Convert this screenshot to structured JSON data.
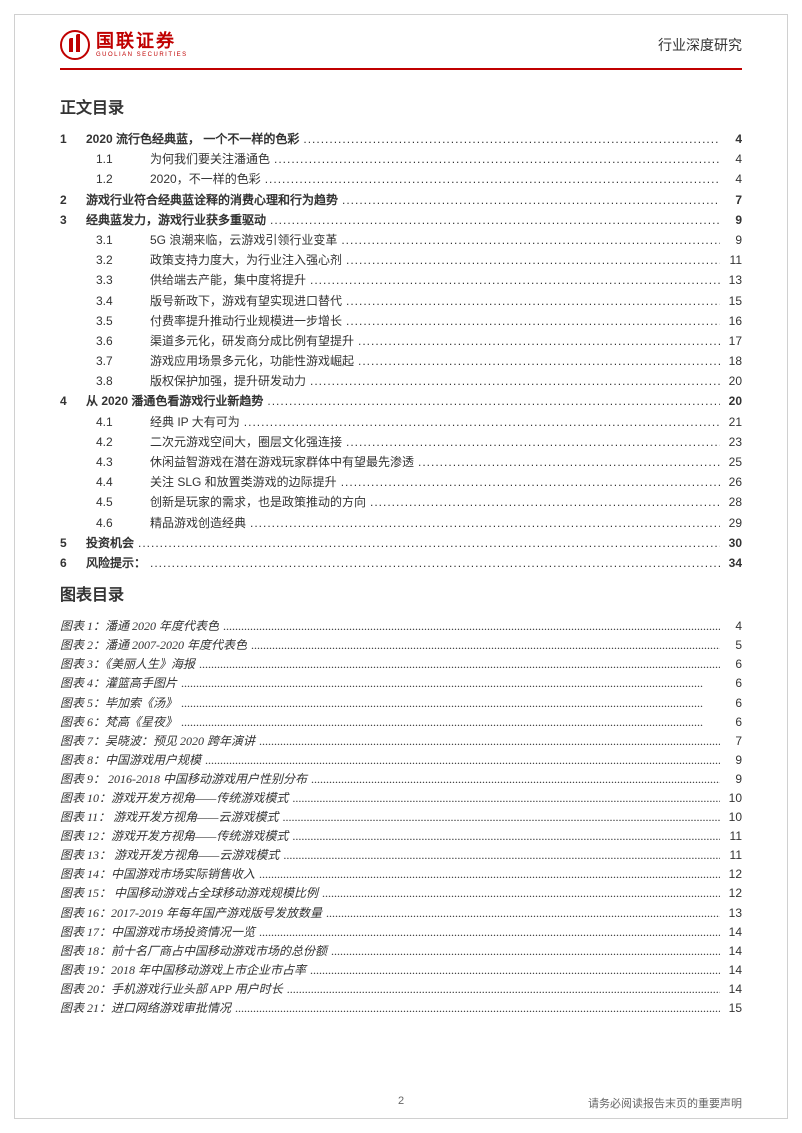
{
  "header": {
    "logo_cn": "国联证券",
    "logo_en": "GUOLIAN SECURITIES",
    "right": "行业深度研究"
  },
  "toc_title": "正文目录",
  "fig_title": "图表目录",
  "toc": [
    {
      "type": "top",
      "num": "1",
      "title": "2020 流行色经典蓝， 一个不一样的色彩",
      "page": "4"
    },
    {
      "type": "sub",
      "num": "1.1",
      "title": "为何我们要关注潘通色",
      "page": "4"
    },
    {
      "type": "sub",
      "num": "1.2",
      "title": "2020，不一样的色彩",
      "page": "4"
    },
    {
      "type": "top",
      "num": "2",
      "title": "游戏行业符合经典蓝诠释的消费心理和行为趋势",
      "page": "7"
    },
    {
      "type": "top",
      "num": "3",
      "title": "经典蓝发力，游戏行业获多重驱动",
      "page": "9"
    },
    {
      "type": "sub",
      "num": "3.1",
      "title": "5G 浪潮来临，云游戏引领行业变革",
      "page": "9"
    },
    {
      "type": "sub",
      "num": "3.2",
      "title": "政策支持力度大，为行业注入强心剂",
      "page": "11"
    },
    {
      "type": "sub",
      "num": "3.3",
      "title": "供给端去产能，集中度将提升",
      "page": "13"
    },
    {
      "type": "sub",
      "num": "3.4",
      "title": "版号新政下，游戏有望实现进口替代",
      "page": "15"
    },
    {
      "type": "sub",
      "num": "3.5",
      "title": "付费率提升推动行业规模进一步增长",
      "page": "16"
    },
    {
      "type": "sub",
      "num": "3.6",
      "title": "渠道多元化，研发商分成比例有望提升",
      "page": "17"
    },
    {
      "type": "sub",
      "num": "3.7",
      "title": "游戏应用场景多元化，功能性游戏崛起",
      "page": "18"
    },
    {
      "type": "sub",
      "num": "3.8",
      "title": "版权保护加强，提升研发动力",
      "page": "20"
    },
    {
      "type": "top",
      "num": "4",
      "title": "从 2020 潘通色看游戏行业新趋势",
      "page": "20"
    },
    {
      "type": "sub",
      "num": "4.1",
      "title": "经典 IP 大有可为",
      "page": "21"
    },
    {
      "type": "sub",
      "num": "4.2",
      "title": "二次元游戏空间大，圈层文化强连接",
      "page": "23"
    },
    {
      "type": "sub",
      "num": "4.3",
      "title": "休闲益智游戏在潜在游戏玩家群体中有望最先渗透",
      "page": "25"
    },
    {
      "type": "sub",
      "num": "4.4",
      "title": "关注 SLG 和放置类游戏的边际提升",
      "page": "26"
    },
    {
      "type": "sub",
      "num": "4.5",
      "title": "创新是玩家的需求，也是政策推动的方向",
      "page": "28"
    },
    {
      "type": "sub",
      "num": "4.6",
      "title": "精品游戏创造经典",
      "page": "29"
    },
    {
      "type": "top",
      "num": "5",
      "title": "投资机会",
      "page": "30"
    },
    {
      "type": "top",
      "num": "6",
      "title": "风险提示：",
      "page": "34"
    }
  ],
  "figures": [
    {
      "title": "图表 1：潘通 2020 年度代表色",
      "page": "4"
    },
    {
      "title": "图表 2：潘通 2007-2020 年度代表色",
      "page": "5"
    },
    {
      "title": "图表 3：《美丽人生》海报",
      "page": "6"
    },
    {
      "title": "图表 4：灌篮高手图片",
      "page": "6"
    },
    {
      "title": "图表 5：毕加索《汤》",
      "page": "6"
    },
    {
      "title": "图表 6：梵高《星夜》",
      "page": "6"
    },
    {
      "title": "图表 7：吴晓波：预见 2020 跨年演讲",
      "page": "7"
    },
    {
      "title": "图表 8：中国游戏用户规模",
      "page": "9"
    },
    {
      "title": "图表 9： 2016-2018 中国移动游戏用户性别分布",
      "page": "9"
    },
    {
      "title": "图表 10：游戏开发方视角——传统游戏模式",
      "page": "10"
    },
    {
      "title": "图表 11： 游戏开发方视角——云游戏模式",
      "page": "10"
    },
    {
      "title": "图表 12：游戏开发方视角——传统游戏模式",
      "page": "11"
    },
    {
      "title": "图表 13： 游戏开发方视角——云游戏模式",
      "page": "11"
    },
    {
      "title": "图表 14：中国游戏市场实际销售收入",
      "page": "12"
    },
    {
      "title": "图表 15： 中国移动游戏占全球移动游戏规模比例",
      "page": "12"
    },
    {
      "title": "图表 16：2017-2019 年每年国产游戏版号发放数量",
      "page": "13"
    },
    {
      "title": "图表 17：中国游戏市场投资情况一览",
      "page": "14"
    },
    {
      "title": "图表 18：前十名厂商占中国移动游戏市场的总份额",
      "page": "14"
    },
    {
      "title": "图表 19：2018 年中国移动游戏上市企业市占率",
      "page": "14"
    },
    {
      "title": "图表 20：手机游戏行业头部 APP 用户时长",
      "page": "14"
    },
    {
      "title": "图表 21：进口网络游戏审批情况",
      "page": "15"
    }
  ],
  "footer": {
    "page_num": "2",
    "disclaimer": "请务必阅读报告末页的重要声明"
  },
  "colors": {
    "brand": "#c00000",
    "text": "#333333",
    "border": "#d0d0d0"
  }
}
